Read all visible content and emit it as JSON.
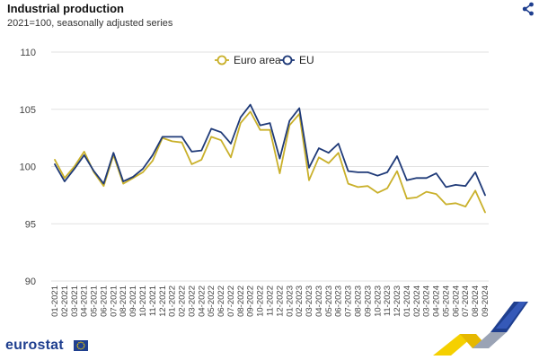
{
  "header": {
    "title": "Industrial production",
    "subtitle": "2021=100, seasonally adjusted series"
  },
  "icons": {
    "share": "share-icon",
    "flag": "eu-flag-icon",
    "ribbon": "eurostat-ribbon-icon"
  },
  "brand": {
    "name": "eurostat"
  },
  "colors": {
    "euro_area": "#c9b02a",
    "eu": "#1f3a78",
    "grid": "#e2e2e2",
    "brand": "#1f3f8f"
  },
  "chart_data": {
    "type": "line",
    "title": "Industrial production",
    "subtitle": "2021=100, seasonally adjusted series",
    "xlabel": "",
    "ylabel": "",
    "ylim": [
      90,
      110
    ],
    "yticks": [
      90,
      95,
      100,
      105,
      110
    ],
    "grid": true,
    "legend_position": "top-center",
    "categories": [
      "01-2021",
      "02-2021",
      "03-2021",
      "04-2021",
      "05-2021",
      "06-2021",
      "07-2021",
      "08-2021",
      "09-2021",
      "10-2021",
      "11-2021",
      "12-2021",
      "01-2022",
      "02-2022",
      "03-2022",
      "04-2022",
      "05-2022",
      "06-2022",
      "07-2022",
      "08-2022",
      "09-2022",
      "10-2022",
      "11-2022",
      "12-2022",
      "01-2023",
      "02-2023",
      "03-2023",
      "04-2023",
      "05-2023",
      "06-2023",
      "07-2023",
      "08-2023",
      "09-2023",
      "10-2023",
      "11-2023",
      "12-2023",
      "01-2024",
      "02-2024",
      "03-2024",
      "04-2024",
      "05-2024",
      "06-2024",
      "07-2024",
      "08-2024",
      "09-2024"
    ],
    "series": [
      {
        "name": "Euro area",
        "color": "#c9b02a",
        "values": [
          100.6,
          99.0,
          100.0,
          101.3,
          99.5,
          98.3,
          101.0,
          98.5,
          99.0,
          99.5,
          100.5,
          102.5,
          102.2,
          102.1,
          100.2,
          100.6,
          102.6,
          102.3,
          100.8,
          103.8,
          104.8,
          103.2,
          103.2,
          99.4,
          103.6,
          104.6,
          98.8,
          100.8,
          100.3,
          101.2,
          98.5,
          98.2,
          98.3,
          97.7,
          98.1,
          99.6,
          97.2,
          97.3,
          97.8,
          97.6,
          96.7,
          96.8,
          96.5,
          97.9,
          96.0
        ]
      },
      {
        "name": "EU",
        "color": "#1f3a78",
        "values": [
          100.2,
          98.7,
          99.8,
          101.0,
          99.6,
          98.5,
          101.2,
          98.7,
          99.1,
          99.8,
          101.0,
          102.6,
          102.6,
          102.6,
          101.3,
          101.4,
          103.3,
          103.0,
          102.0,
          104.3,
          105.4,
          103.6,
          103.8,
          100.7,
          104.0,
          105.1,
          99.9,
          101.6,
          101.2,
          102.0,
          99.6,
          99.5,
          99.5,
          99.2,
          99.5,
          100.9,
          98.8,
          99.0,
          99.0,
          99.4,
          98.2,
          98.4,
          98.3,
          99.5,
          97.5
        ]
      }
    ]
  }
}
